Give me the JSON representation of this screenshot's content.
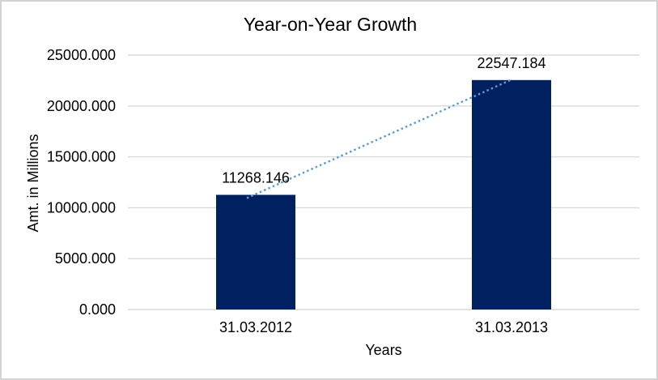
{
  "chart_data": {
    "type": "bar",
    "title": "Year-on-Year Growth",
    "xlabel": "Years",
    "ylabel": "Amt. in Millions",
    "categories": [
      "31.03.2012",
      "31.03.2013"
    ],
    "series": [
      {
        "name": "Amt. in Millions",
        "values": [
          11268.146,
          22547.184
        ]
      }
    ],
    "data_labels": [
      "11268.146",
      "22547.184"
    ],
    "ylim": [
      0,
      25000
    ],
    "ytick_step": 5000,
    "ytick_labels": [
      "0.000",
      "5000.000",
      "10000.000",
      "15000.000",
      "20000.000",
      "25000.000"
    ],
    "grid": true,
    "legend_position": "none",
    "trendline": {
      "type": "linear",
      "style": "dotted",
      "color": "#5b9bd5"
    },
    "colors": {
      "bar": "#002060",
      "gridline": "#d9d9d9",
      "axis_line": "#d9d9d9",
      "text": "#000000",
      "background": "#ffffff",
      "frame_border": "#d3d3d3"
    }
  }
}
